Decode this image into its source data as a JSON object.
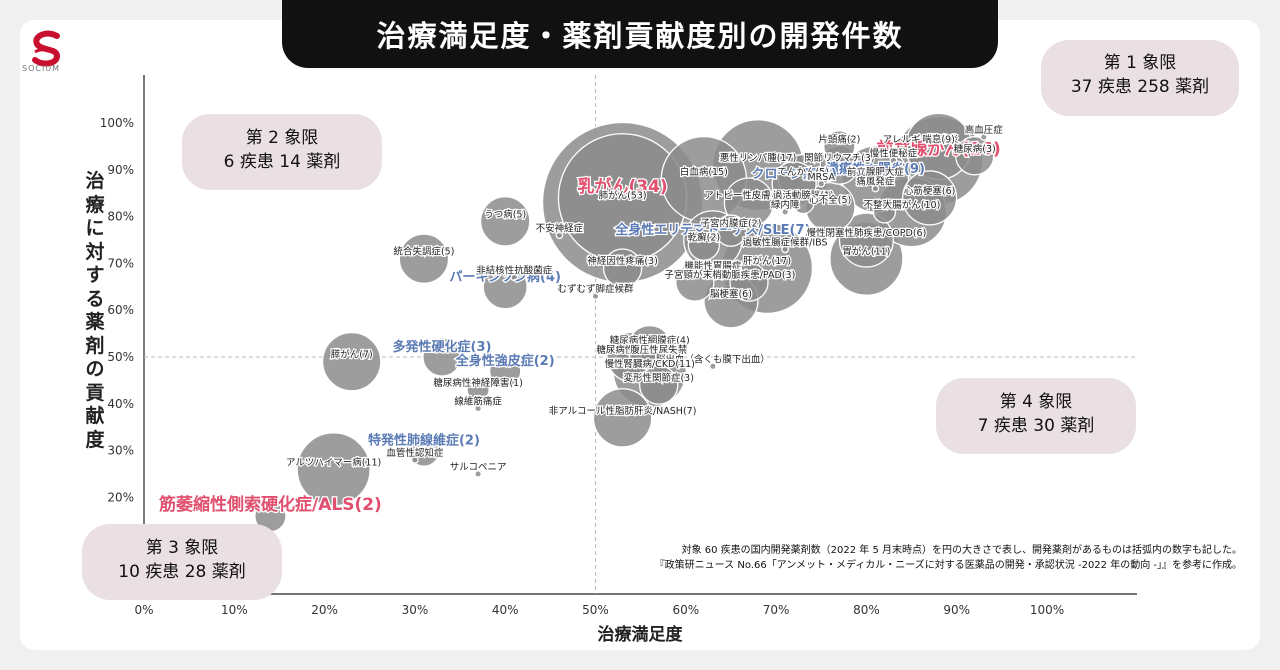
{
  "title": "治療満足度・薬剤貢献度別の開発件数",
  "brand": "SOCIUM",
  "quadrants": [
    {
      "name": "第 1 象限",
      "stats": "37 疾患 258 薬剤"
    },
    {
      "name": "第 2 象限",
      "stats": "6 疾患 14 薬剤"
    },
    {
      "name": "第 3 象限",
      "stats": "10 疾患 28 薬剤"
    },
    {
      "name": "第 4 象限",
      "stats": "7 疾患 30 薬剤"
    }
  ],
  "note": [
    "対象 60 疾患の国内開発薬剤数（2022 年 5 月末時点）を円の大きさで表し、開発薬剤があるものは括弧内の数字も記した。",
    "『政策研ニュース No.66「アンメット・メディカル・ニーズに対する医薬品の開発・承認状況 -2022 年の動向 -」』を参考に作成。"
  ],
  "colors": {
    "bubble": "#8c8c8c",
    "highlight_pink": "#e0506e",
    "highlight_blue": "#5b7bb5",
    "quadrant_bg": "#eadfe3",
    "title_bg": "#111111"
  },
  "chart_data": {
    "type": "scatter",
    "xlabel": "治療満足度",
    "ylabel": "治療に対する薬剤の貢献度",
    "xlim": [
      0,
      110
    ],
    "ylim": [
      15,
      110
    ],
    "x_ticks": [
      "0%",
      "10%",
      "20%",
      "30%",
      "40%",
      "50%",
      "60%",
      "70%",
      "80%",
      "90%",
      "100%"
    ],
    "y_ticks": [
      "20%",
      "30%",
      "40%",
      "50%",
      "60%",
      "70%",
      "80%",
      "90%",
      "100%"
    ],
    "reference_lines": {
      "x": 50,
      "y": 50
    },
    "points": [
      {
        "label": "乳がん(34)",
        "x": 53,
        "y": 84,
        "n": 34,
        "style": "pink"
      },
      {
        "label": "前立腺がん(16)",
        "x": 88,
        "y": 92,
        "n": 16,
        "style": "pink"
      },
      {
        "label": "筋萎縮性側索硬化症/ALS(2)",
        "x": 14,
        "y": 16,
        "n": 2,
        "style": "pink"
      },
      {
        "label": "潰瘍性大腸炎(9)",
        "x": 81,
        "y": 88,
        "n": 9,
        "style": "blue"
      },
      {
        "label": "クローン病(4)",
        "x": 72,
        "y": 87,
        "n": 4,
        "style": "blue"
      },
      {
        "label": "全身性エリテマトーデス/SLE(7)",
        "x": 63,
        "y": 75,
        "n": 7,
        "style": "blue"
      },
      {
        "label": "パーキンソン病(4)",
        "x": 40,
        "y": 65,
        "n": 4,
        "style": "blue"
      },
      {
        "label": "多発性硬化症(3)",
        "x": 33,
        "y": 50,
        "n": 3,
        "style": "blue"
      },
      {
        "label": "全身性強皮症(2)",
        "x": 40,
        "y": 47,
        "n": 2,
        "style": "blue"
      },
      {
        "label": "特発性肺線維症(2)",
        "x": 31,
        "y": 30,
        "n": 2,
        "style": "blue"
      },
      {
        "label": "片頭痛(2)",
        "x": 77,
        "y": 95,
        "n": 2
      },
      {
        "label": "アレルギー性鼻炎",
        "x": 86,
        "y": 95,
        "n": 0
      },
      {
        "label": "高血圧症",
        "x": 93,
        "y": 97,
        "n": 0
      },
      {
        "label": "喘息(9)",
        "x": 88,
        "y": 95,
        "n": 9
      },
      {
        "label": "糖尿病(3)",
        "x": 92,
        "y": 93,
        "n": 3
      },
      {
        "label": "悪性リンパ腫(17)",
        "x": 68,
        "y": 91,
        "n": 17
      },
      {
        "label": "関節リウマチ(3)",
        "x": 77,
        "y": 91,
        "n": 3
      },
      {
        "label": "慢性便秘症",
        "x": 83,
        "y": 92,
        "n": 0
      },
      {
        "label": "白血病(15)",
        "x": 62,
        "y": 88,
        "n": 15
      },
      {
        "label": "てんかん(5)",
        "x": 73,
        "y": 88,
        "n": 5
      },
      {
        "label": "MRSA",
        "x": 75,
        "y": 87,
        "n": 0
      },
      {
        "label": "前立腺肥大症",
        "x": 81,
        "y": 88,
        "n": 0
      },
      {
        "label": "肺がん(53)",
        "x": 53,
        "y": 83,
        "n": 53
      },
      {
        "label": "痛風発症",
        "x": 81,
        "y": 86,
        "n": 0
      },
      {
        "label": "アトピー性皮膚炎(5)",
        "x": 67,
        "y": 83,
        "n": 5
      },
      {
        "label": "過活動膀胱(1)",
        "x": 73,
        "y": 83,
        "n": 1
      },
      {
        "label": "心筋梗塞(6)",
        "x": 87,
        "y": 84,
        "n": 6
      },
      {
        "label": "不整脈(1)",
        "x": 82,
        "y": 81,
        "n": 1
      },
      {
        "label": "緑内障",
        "x": 71,
        "y": 81,
        "n": 0
      },
      {
        "label": "心不全(5)",
        "x": 76,
        "y": 82,
        "n": 5
      },
      {
        "label": "大腸がん(10)",
        "x": 85,
        "y": 81,
        "n": 10
      },
      {
        "label": "うつ病(5)",
        "x": 40,
        "y": 79,
        "n": 5
      },
      {
        "label": "子宮内膜症(2)",
        "x": 65,
        "y": 77,
        "n": 2
      },
      {
        "label": "不安神経症",
        "x": 46,
        "y": 76,
        "n": 0
      },
      {
        "label": "慢性閉塞性肺疾患/COPD(6)",
        "x": 80,
        "y": 75,
        "n": 6
      },
      {
        "label": "乾癬(2)",
        "x": 62,
        "y": 74,
        "n": 2
      },
      {
        "label": "過敏性腸症候群/IBS",
        "x": 71,
        "y": 73,
        "n": 0
      },
      {
        "label": "統合失調症(5)",
        "x": 31,
        "y": 71,
        "n": 5
      },
      {
        "label": "胃がん(11)",
        "x": 80,
        "y": 71,
        "n": 11
      },
      {
        "label": "神経因性疼痛(3)",
        "x": 53,
        "y": 69,
        "n": 3
      },
      {
        "label": "機能性胃腸症",
        "x": 63,
        "y": 68,
        "n": 0
      },
      {
        "label": "肝がん(17)",
        "x": 69,
        "y": 69,
        "n": 17
      },
      {
        "label": "非結核性抗酸菌症",
        "x": 41,
        "y": 67,
        "n": 0
      },
      {
        "label": "子宮頸がん(3)",
        "x": 61,
        "y": 66,
        "n": 3
      },
      {
        "label": "末梢動脈疾患/PAD(3)",
        "x": 67,
        "y": 66,
        "n": 3
      },
      {
        "label": "むずむず脚症候群",
        "x": 50,
        "y": 63,
        "n": 0
      },
      {
        "label": "脳梗塞(6)",
        "x": 65,
        "y": 62,
        "n": 6
      },
      {
        "label": "糖尿病性網膜症(4)",
        "x": 56,
        "y": 52,
        "n": 4
      },
      {
        "label": "糖尿病性腎症(5)",
        "x": 54,
        "y": 50,
        "n": 5
      },
      {
        "label": "腹圧性尿失禁",
        "x": 57,
        "y": 50,
        "n": 0
      },
      {
        "label": "膵がん(7)",
        "x": 23,
        "y": 49,
        "n": 7
      },
      {
        "label": "脳出血（含くも膜下出血）",
        "x": 63,
        "y": 48,
        "n": 0
      },
      {
        "label": "慢性腎臓病/CKD(11)",
        "x": 56,
        "y": 47,
        "n": 11
      },
      {
        "label": "糖尿病性神経障害(1)",
        "x": 37,
        "y": 43,
        "n": 1
      },
      {
        "label": "変形性関節症(3)",
        "x": 57,
        "y": 44,
        "n": 3
      },
      {
        "label": "線維筋痛症",
        "x": 37,
        "y": 39,
        "n": 0
      },
      {
        "label": "非アルコール性脂肪肝炎/NASH(7)",
        "x": 53,
        "y": 37,
        "n": 7
      },
      {
        "label": "血管性認知症",
        "x": 30,
        "y": 28,
        "n": 0
      },
      {
        "label": "アルツハイマー病(11)",
        "x": 21,
        "y": 26,
        "n": 11
      },
      {
        "label": "サルコペニア",
        "x": 37,
        "y": 25,
        "n": 0
      }
    ]
  }
}
